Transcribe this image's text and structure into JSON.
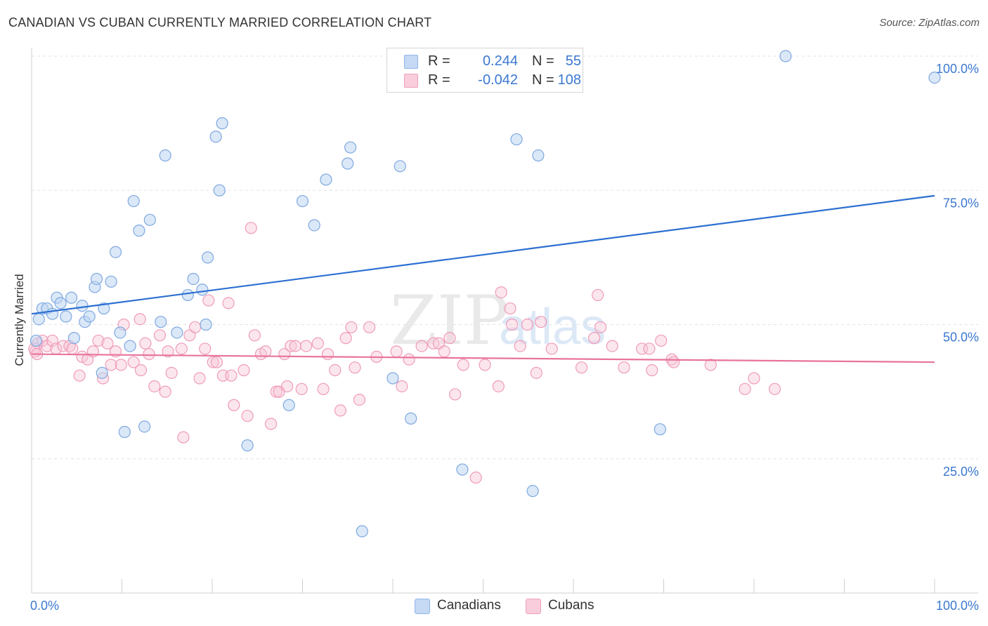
{
  "title": "CANADIAN VS CUBAN CURRENTLY MARRIED CORRELATION CHART",
  "source": "Source: ZipAtlas.com",
  "watermark": {
    "zip": "ZIP",
    "atlas": "atlas"
  },
  "legend": {
    "rows": [
      {
        "r_label": "R =",
        "r_value": "0.244",
        "n_label": "N =",
        "n_value": "55",
        "color": "#8fb6ea",
        "fill": "#c5d9f5"
      },
      {
        "r_label": "R =",
        "r_value": "-0.042",
        "n_label": "N =",
        "n_value": "108",
        "color": "#f0a0bc",
        "fill": "#f9cddc"
      }
    ],
    "bottom": [
      {
        "label": "Canadians",
        "color": "#8fb6ea",
        "fill": "#c5d9f5"
      },
      {
        "label": "Cubans",
        "color": "#f0a0bc",
        "fill": "#f9cddc"
      }
    ]
  },
  "colors": {
    "canadian_line": "#2c6fd1",
    "cuban_line": "#e8739d",
    "axis_text": "#3b78d0",
    "grid": "#e4e4e4"
  },
  "chart_data": {
    "type": "scatter",
    "title": "CANADIAN VS CUBAN CURRENTLY MARRIED CORRELATION CHART",
    "xlabel": "",
    "ylabel": "Currently Married",
    "xlim": [
      0,
      100
    ],
    "ylim": [
      0,
      100
    ],
    "x_tick_labels": [
      "0.0%",
      "100.0%"
    ],
    "y_tick_labels": [
      "25.0%",
      "50.0%",
      "75.0%",
      "100.0%"
    ],
    "y_ticks": [
      25,
      50,
      75,
      100
    ],
    "grid": true,
    "series": [
      {
        "name": "Canadians",
        "trend": {
          "x": [
            0,
            100
          ],
          "y": [
            52.0,
            74.0
          ]
        },
        "points": [
          [
            0.5,
            47
          ],
          [
            0.8,
            51
          ],
          [
            1.2,
            53
          ],
          [
            1.7,
            53
          ],
          [
            2.3,
            52
          ],
          [
            2.8,
            55
          ],
          [
            3.2,
            54
          ],
          [
            3.8,
            51.5
          ],
          [
            4.4,
            55
          ],
          [
            4.7,
            47.5
          ],
          [
            5.6,
            53.5
          ],
          [
            5.9,
            50.5
          ],
          [
            6.4,
            51.5
          ],
          [
            7.0,
            57
          ],
          [
            7.2,
            58.5
          ],
          [
            8.0,
            53
          ],
          [
            8.8,
            58
          ],
          [
            9.3,
            63.5
          ],
          [
            9.8,
            48.5
          ],
          [
            10.3,
            30
          ],
          [
            10.9,
            46
          ],
          [
            11.3,
            73
          ],
          [
            11.9,
            67.5
          ],
          [
            12.5,
            31
          ],
          [
            13.1,
            69.5
          ],
          [
            14.3,
            50.5
          ],
          [
            14.8,
            81.5
          ],
          [
            16.1,
            48.5
          ],
          [
            17.3,
            55.5
          ],
          [
            17.9,
            58.5
          ],
          [
            18.9,
            56.5
          ],
          [
            19.3,
            50
          ],
          [
            19.5,
            62.5
          ],
          [
            20.4,
            85
          ],
          [
            20.8,
            75
          ],
          [
            21.1,
            87.5
          ],
          [
            23.9,
            27.5
          ],
          [
            28.5,
            35
          ],
          [
            30.0,
            73
          ],
          [
            31.3,
            68.5
          ],
          [
            32.6,
            77
          ],
          [
            35.0,
            80
          ],
          [
            35.3,
            83
          ],
          [
            36.6,
            11.5
          ],
          [
            40.0,
            40
          ],
          [
            40.8,
            79.5
          ],
          [
            42.0,
            32.5
          ],
          [
            47.7,
            23
          ],
          [
            53.7,
            84.5
          ],
          [
            55.5,
            19
          ],
          [
            56.1,
            81.5
          ],
          [
            69.6,
            30.5
          ],
          [
            83.5,
            100
          ],
          [
            100,
            96
          ],
          [
            7.8,
            41
          ]
        ]
      },
      {
        "name": "Cubans",
        "trend": {
          "x": [
            0,
            100
          ],
          "y": [
            44.5,
            43.0
          ]
        },
        "points": [
          [
            0.4,
            45
          ],
          [
            0.7,
            46.5
          ],
          [
            1.2,
            47
          ],
          [
            1.7,
            46
          ],
          [
            2.3,
            47
          ],
          [
            2.7,
            45.5
          ],
          [
            3.5,
            46
          ],
          [
            4.2,
            46
          ],
          [
            4.5,
            45.5
          ],
          [
            5.3,
            40.5
          ],
          [
            5.6,
            44
          ],
          [
            6.2,
            43.5
          ],
          [
            6.8,
            45
          ],
          [
            7.4,
            47
          ],
          [
            7.9,
            40
          ],
          [
            8.4,
            46.5
          ],
          [
            8.8,
            42.5
          ],
          [
            9.3,
            45
          ],
          [
            9.9,
            42.5
          ],
          [
            10.2,
            50
          ],
          [
            11.3,
            43
          ],
          [
            12.0,
            51
          ],
          [
            12.1,
            41.5
          ],
          [
            12.6,
            46.5
          ],
          [
            13.0,
            44.5
          ],
          [
            13.6,
            38.5
          ],
          [
            14.2,
            48
          ],
          [
            14.8,
            37.5
          ],
          [
            15.1,
            45
          ],
          [
            15.5,
            41
          ],
          [
            16.6,
            45.5
          ],
          [
            16.8,
            29
          ],
          [
            17.5,
            48
          ],
          [
            18.1,
            49.5
          ],
          [
            18.6,
            40
          ],
          [
            19.2,
            45.5
          ],
          [
            19.6,
            54.5
          ],
          [
            20.1,
            43
          ],
          [
            20.5,
            43
          ],
          [
            21.2,
            40.5
          ],
          [
            21.8,
            54
          ],
          [
            22.1,
            40.5
          ],
          [
            22.4,
            35
          ],
          [
            23.5,
            41.5
          ],
          [
            23.9,
            33
          ],
          [
            24.3,
            68
          ],
          [
            24.7,
            48
          ],
          [
            25.4,
            44.5
          ],
          [
            25.9,
            45
          ],
          [
            26.5,
            31.5
          ],
          [
            27.1,
            37.5
          ],
          [
            27.4,
            37.5
          ],
          [
            28.0,
            44.5
          ],
          [
            28.3,
            38.5
          ],
          [
            28.7,
            46
          ],
          [
            29.2,
            46
          ],
          [
            29.9,
            38
          ],
          [
            30.4,
            46
          ],
          [
            31.7,
            46.5
          ],
          [
            32.3,
            38
          ],
          [
            32.8,
            44.5
          ],
          [
            33.6,
            41.5
          ],
          [
            34.2,
            34
          ],
          [
            34.8,
            47.5
          ],
          [
            35.4,
            49.5
          ],
          [
            35.8,
            42
          ],
          [
            36.3,
            36
          ],
          [
            37.4,
            49.5
          ],
          [
            38.2,
            44
          ],
          [
            40.4,
            45
          ],
          [
            41.0,
            38.5
          ],
          [
            41.8,
            43.5
          ],
          [
            43.2,
            46
          ],
          [
            44.5,
            46.5
          ],
          [
            45.1,
            46.5
          ],
          [
            45.7,
            45
          ],
          [
            46.3,
            47.5
          ],
          [
            46.9,
            37
          ],
          [
            47.8,
            42.5
          ],
          [
            49.2,
            21.5
          ],
          [
            50.2,
            42.5
          ],
          [
            51.7,
            38.5
          ],
          [
            52.0,
            56
          ],
          [
            53.2,
            50
          ],
          [
            54.1,
            46
          ],
          [
            54.9,
            50
          ],
          [
            55.9,
            41
          ],
          [
            56.4,
            50.5
          ],
          [
            57.6,
            45.5
          ],
          [
            60.9,
            42
          ],
          [
            62.3,
            47.5
          ],
          [
            62.7,
            55.5
          ],
          [
            63.0,
            49.5
          ],
          [
            64.3,
            46
          ],
          [
            65.6,
            42
          ],
          [
            67.6,
            45.5
          ],
          [
            68.4,
            45.5
          ],
          [
            68.7,
            41.5
          ],
          [
            69.7,
            47
          ],
          [
            70.9,
            43.5
          ],
          [
            71.1,
            43
          ],
          [
            75.2,
            42.5
          ],
          [
            79.0,
            38
          ],
          [
            80.0,
            40
          ],
          [
            82.3,
            38
          ],
          [
            0.3,
            45.5
          ],
          [
            0.6,
            44.5
          ],
          [
            53.0,
            53
          ]
        ]
      }
    ]
  }
}
